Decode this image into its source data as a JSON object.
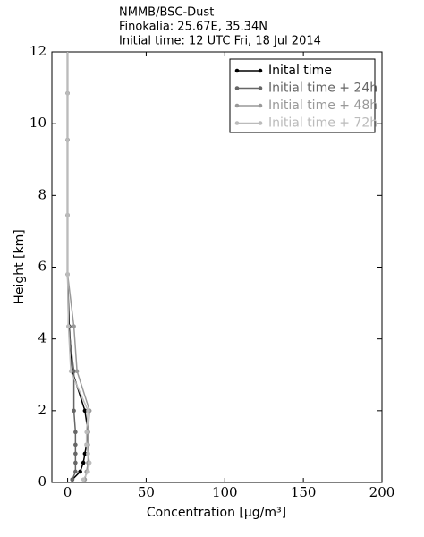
{
  "chart_data": {
    "type": "line",
    "title_lines": [
      "NMMB/BSC-Dust",
      "Finokalia: 25.67E, 35.34N",
      "Initial time: 12 UTC Fri, 18 Jul 2014"
    ],
    "x_label": "Concentration [μg/m³]",
    "y_label": "Height [km]",
    "heights": [
      0.08,
      0.3,
      0.55,
      0.8,
      1.05,
      1.4,
      2.0,
      3.1,
      4.35,
      5.8,
      7.45,
      9.55,
      10.85,
      12
    ],
    "series": [
      {
        "name": "Inital time",
        "color": "#000000",
        "values": [
          3,
          8,
          10,
          11,
          12,
          13,
          11,
          3,
          1,
          0,
          0,
          0,
          0,
          0
        ]
      },
      {
        "name": "Initial time + 24h",
        "color": "#666666",
        "values": [
          3,
          5,
          5,
          5,
          5,
          5,
          4,
          4,
          0.5,
          0,
          0,
          0,
          0,
          0
        ]
      },
      {
        "name": "Initial time + 48h",
        "color": "#999999",
        "values": [
          11,
          12,
          13,
          13,
          13,
          13,
          14,
          6,
          4,
          0,
          0,
          0,
          0,
          0
        ]
      },
      {
        "name": "Initial time + 72h",
        "color": "#bbbbbb",
        "values": [
          10,
          13,
          14,
          13,
          12,
          12,
          13,
          2,
          0.5,
          0,
          0,
          0,
          0,
          0
        ]
      }
    ],
    "xlim": [
      -10,
      200
    ],
    "xticks": [
      0,
      50,
      100,
      150,
      200
    ],
    "ylim": [
      0,
      12
    ],
    "yticks": [
      0,
      2,
      4,
      6,
      8,
      10,
      12
    ],
    "legend": "upper right"
  }
}
